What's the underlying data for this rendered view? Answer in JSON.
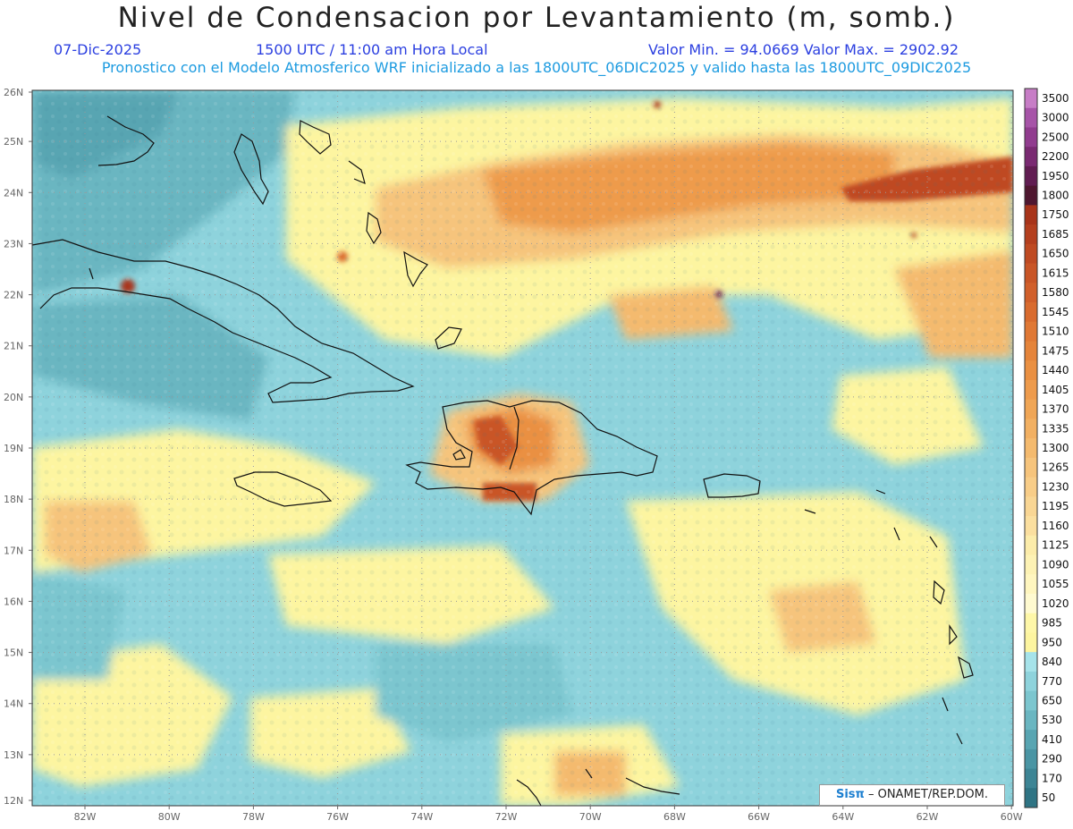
{
  "header": {
    "title": "Nivel de Condensacion por Levantamiento (m, somb.)",
    "date": "07-Dic-2025",
    "time": "1500 UTC / 11:00 am Hora Local",
    "minmax": "Valor Min. = 94.0669   Valor Max. = 2902.92",
    "subtitle": "Pronostico con el Modelo Atmosferico WRF inicializado a las 1800UTC_06DIC2025 y valido hasta las  1800UTC_09DIC2025"
  },
  "axes": {
    "lat_labels": [
      "26N",
      "25N",
      "24N",
      "23N",
      "22N",
      "21N",
      "20N",
      "19N",
      "18N",
      "17N",
      "16N",
      "15N",
      "14N",
      "13N",
      "12N"
    ],
    "lon_labels": [
      "82W",
      "80W",
      "78W",
      "76W",
      "74W",
      "72W",
      "70W",
      "68W",
      "66W",
      "64W",
      "62W",
      "60W"
    ]
  },
  "colorbar": {
    "labels": [
      "3500",
      "3000",
      "2500",
      "2200",
      "1950",
      "1800",
      "1750",
      "1685",
      "1650",
      "1615",
      "1580",
      "1545",
      "1510",
      "1475",
      "1440",
      "1405",
      "1370",
      "1335",
      "1300",
      "1265",
      "1230",
      "1195",
      "1160",
      "1125",
      "1090",
      "1055",
      "1020",
      "985",
      "950",
      "840",
      "770",
      "650",
      "530",
      "410",
      "290",
      "170",
      "50"
    ],
    "colors": [
      "#c77dc6",
      "#a754a8",
      "#913c8f",
      "#7a2a72",
      "#611d52",
      "#4f1730",
      "#a8341a",
      "#b43f1e",
      "#bf4a22",
      "#c95526",
      "#d15f2a",
      "#d96b2e",
      "#e07834",
      "#e5843a",
      "#ea9042",
      "#ee9b4c",
      "#f0a656",
      "#f2b062",
      "#f4ba6e",
      "#f6c47c",
      "#f8cd88",
      "#f9d694",
      "#fbdf9f",
      "#fcecaa",
      "#fdf2b4",
      "#fff6bf",
      "#fffad0",
      "#fef7a8",
      "#fdf5a0",
      "#a6e3ea",
      "#8ed3dc",
      "#7cc6cf",
      "#6ab6c1",
      "#58a5b2",
      "#4a95a4",
      "#3d8595",
      "#2f7484"
    ]
  },
  "credit": {
    "logo": "Sisπ",
    "text": "– ONAMET/REP.DOM."
  }
}
